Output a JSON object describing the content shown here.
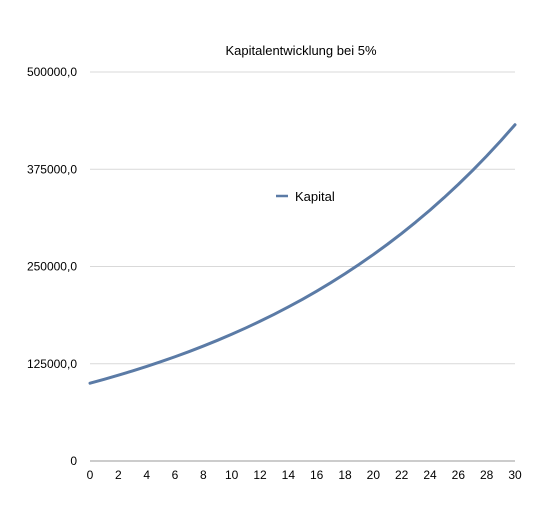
{
  "chart_data": {
    "type": "line",
    "title": "Kapitalentwicklung bei 5%",
    "xlabel": "",
    "ylabel": "",
    "x": [
      0,
      1,
      2,
      3,
      4,
      5,
      6,
      7,
      8,
      9,
      10,
      11,
      12,
      13,
      14,
      15,
      16,
      17,
      18,
      19,
      20,
      21,
      22,
      23,
      24,
      25,
      26,
      27,
      28,
      29,
      30
    ],
    "series": [
      {
        "name": "Kapital",
        "color": "#5b7ba6",
        "values": [
          100000.0,
          105000.0,
          110250.0,
          115762.5,
          121550.6,
          127628.2,
          134009.6,
          140710.0,
          147745.5,
          155132.8,
          162889.5,
          171033.9,
          179585.6,
          188564.9,
          197993.2,
          207892.8,
          218287.5,
          229201.8,
          240661.9,
          252695.0,
          265329.8,
          278596.3,
          292526.1,
          307152.4,
          322510.0,
          338635.5,
          355567.3,
          373345.6,
          392012.9,
          411613.6,
          432194.2
        ]
      }
    ],
    "xlim": [
      0,
      30
    ],
    "ylim": [
      0,
      500000
    ],
    "x_tick_labels": [
      "0",
      "2",
      "4",
      "6",
      "8",
      "10",
      "12",
      "14",
      "16",
      "18",
      "20",
      "22",
      "24",
      "26",
      "28",
      "30"
    ],
    "y_tick_labels": [
      "0",
      "125000,0",
      "250000,0",
      "375000,0",
      "500000,0"
    ],
    "grid": true,
    "legend_position": "center"
  }
}
